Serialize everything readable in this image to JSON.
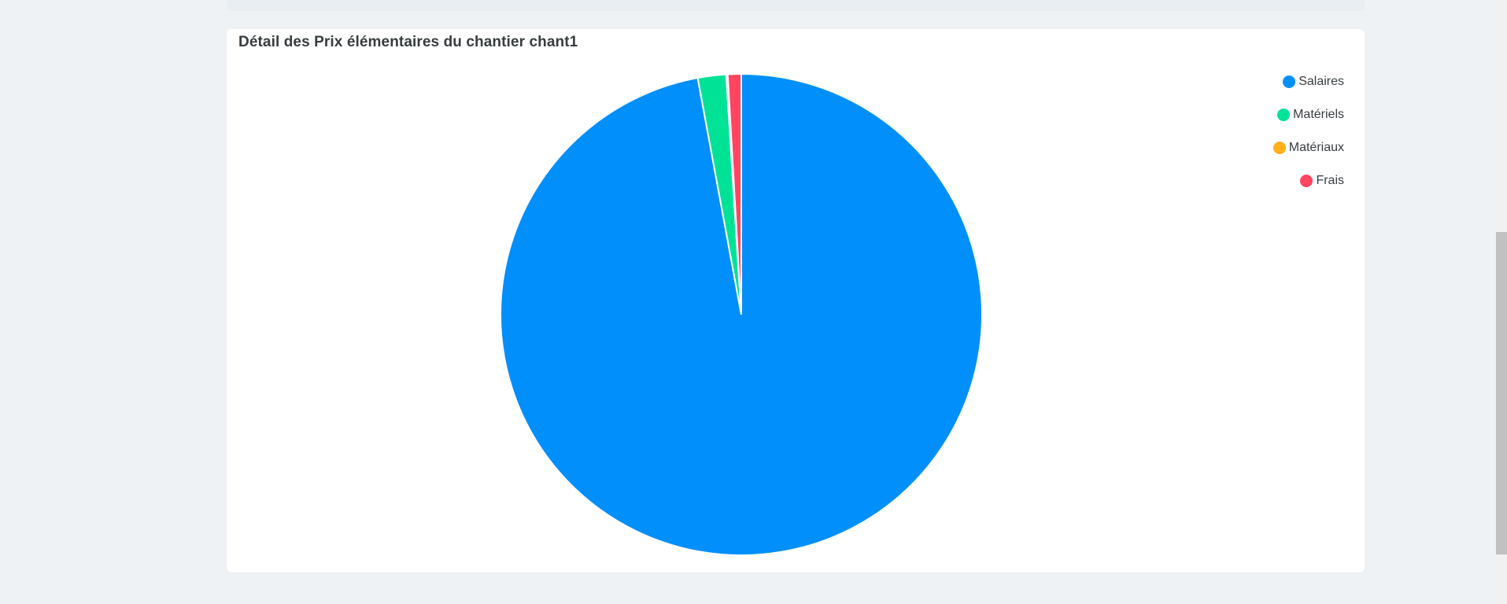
{
  "chart_data": {
    "type": "pie",
    "title": "Détail des Prix élémentaires du chantier chant1",
    "categories": [
      "Salaires",
      "Matériels",
      "Matériaux",
      "Frais"
    ],
    "values": [
      97.1,
      1.9,
      0.1,
      0.9
    ],
    "colors": [
      "#008ffb",
      "#00e396",
      "#feb019",
      "#ff4560"
    ],
    "legend_position": "top-right",
    "start_angle_deg": 0,
    "direction": "clockwise"
  }
}
